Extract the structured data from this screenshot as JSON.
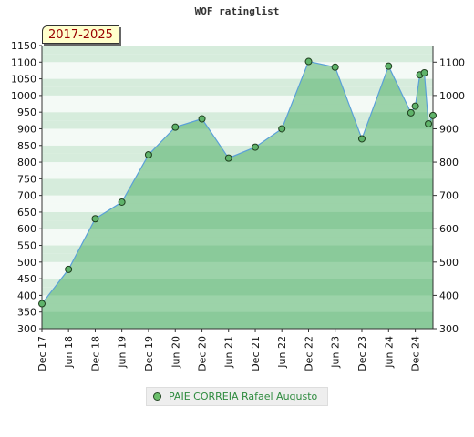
{
  "chart_data": {
    "type": "area",
    "title": "WOF ratinglist",
    "period_label": "2017-2025",
    "ylim": [
      300,
      1150
    ],
    "y_ticks_left": [
      300,
      350,
      400,
      450,
      500,
      550,
      600,
      650,
      700,
      750,
      800,
      850,
      900,
      950,
      1000,
      1050,
      1100,
      1150
    ],
    "y_ticks_right": [
      300,
      400,
      500,
      600,
      700,
      800,
      900,
      1000,
      1100
    ],
    "x_ticks": [
      "Dec 17",
      "Jun 18",
      "Dec 18",
      "Jun 19",
      "Dec 19",
      "Jun 20",
      "Dec 20",
      "Jun 21",
      "Dec 21",
      "Jun 22",
      "Dec 22",
      "Jun 23",
      "Dec 23",
      "Jun 24",
      "Dec 24"
    ],
    "series": [
      {
        "name": "PAIE CORREIA Rafael Augusto",
        "x": [
          "2017-12",
          "2018-06",
          "2018-12",
          "2019-06",
          "2019-12",
          "2020-06",
          "2020-12",
          "2021-06",
          "2021-12",
          "2022-06",
          "2022-12",
          "2023-06",
          "2023-12",
          "2024-06",
          "2024-11",
          "2024-12",
          "2025-01",
          "2025-02",
          "2025-03",
          "2025-04"
        ],
        "values": [
          375,
          478,
          630,
          680,
          822,
          905,
          930,
          812,
          845,
          900,
          1102,
          1085,
          870,
          1088,
          948,
          968,
          1062,
          1068,
          915,
          940
        ]
      }
    ],
    "legend_position": "bottom",
    "grid": true,
    "colors": {
      "area_fill": "#7cc48e",
      "band_dark": "#8fcb9f",
      "band_light": "#eef7f0",
      "line": "#5aa0d8",
      "marker_fill": "#5fb36a",
      "marker_stroke": "#1f3f1f",
      "legend_text": "#2e8b3e",
      "badge_text": "#990000",
      "badge_fill": "#ffffcc"
    }
  }
}
